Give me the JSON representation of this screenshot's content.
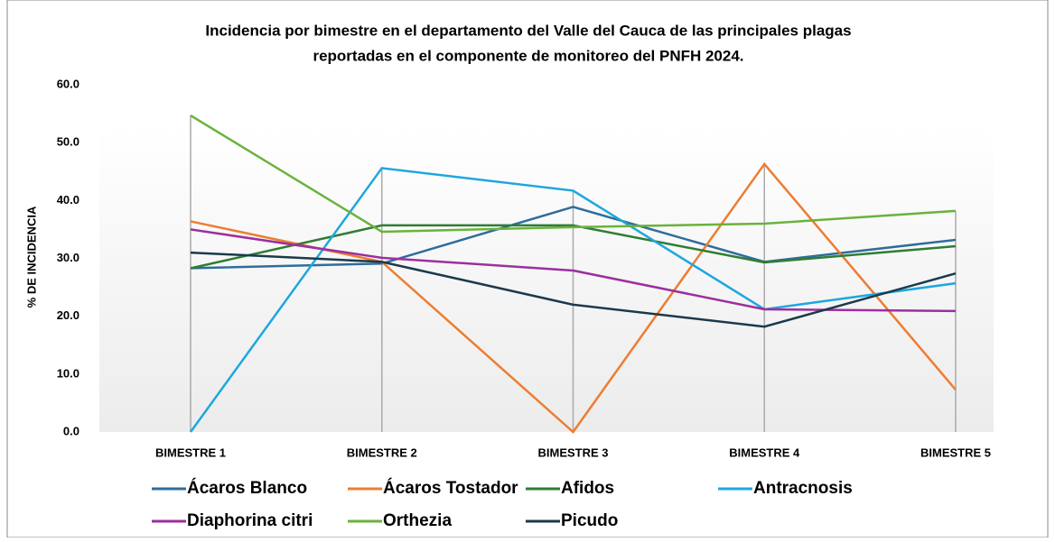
{
  "chart_data": {
    "type": "line",
    "title": "Incidencia por bimestre en el departamento del Valle del Cauca de las principales plagas",
    "subtitle": "reportadas en el componente de monitoreo del PNFH 2024.",
    "y_label": "% DE INCIDENCIA",
    "categories": [
      "BIMESTRE 1",
      "BIMESTRE 2",
      "BIMESTRE 3",
      "BIMESTRE 4",
      "BIMESTRE 5"
    ],
    "series": [
      {
        "name": "Ácaros Blanco",
        "color": "#2e6d9c",
        "values": [
          28.3,
          29.1,
          38.9,
          29.4,
          33.2
        ]
      },
      {
        "name": "Ácaros Tostador",
        "color": "#ed7d31",
        "values": [
          36.4,
          29.4,
          0,
          46.3,
          7.3
        ]
      },
      {
        "name": "Afidos",
        "color": "#2e7d32",
        "values": [
          28.3,
          35.7,
          35.7,
          29.3,
          32.1
        ]
      },
      {
        "name": "Antracnosis",
        "color": "#1ea7df",
        "values": [
          0,
          45.6,
          41.7,
          21.2,
          25.7
        ]
      },
      {
        "name": "Diaphorina citri",
        "color": "#9c2f9f",
        "values": [
          35.0,
          30.1,
          27.9,
          21.2,
          20.9
        ]
      },
      {
        "name": "Orthezia",
        "color": "#6ab23c",
        "values": [
          54.7,
          34.6,
          35.4,
          36.0,
          38.2
        ]
      },
      {
        "name": "Picudo",
        "color": "#1b3a4b",
        "values": [
          31.0,
          29.4,
          22.0,
          18.2,
          27.4
        ]
      }
    ],
    "ylim": [
      0,
      60
    ],
    "yticks": [
      {
        "value": 0,
        "label": "0.0"
      },
      {
        "value": 10,
        "label": "10.0"
      },
      {
        "value": 20,
        "label": "20.0"
      },
      {
        "value": 30,
        "label": "30.0"
      },
      {
        "value": 40,
        "label": "40.0"
      },
      {
        "value": 50,
        "label": "50.0"
      },
      {
        "value": 60,
        "label": "60.0"
      }
    ],
    "grid": false,
    "legend": "bottom"
  }
}
